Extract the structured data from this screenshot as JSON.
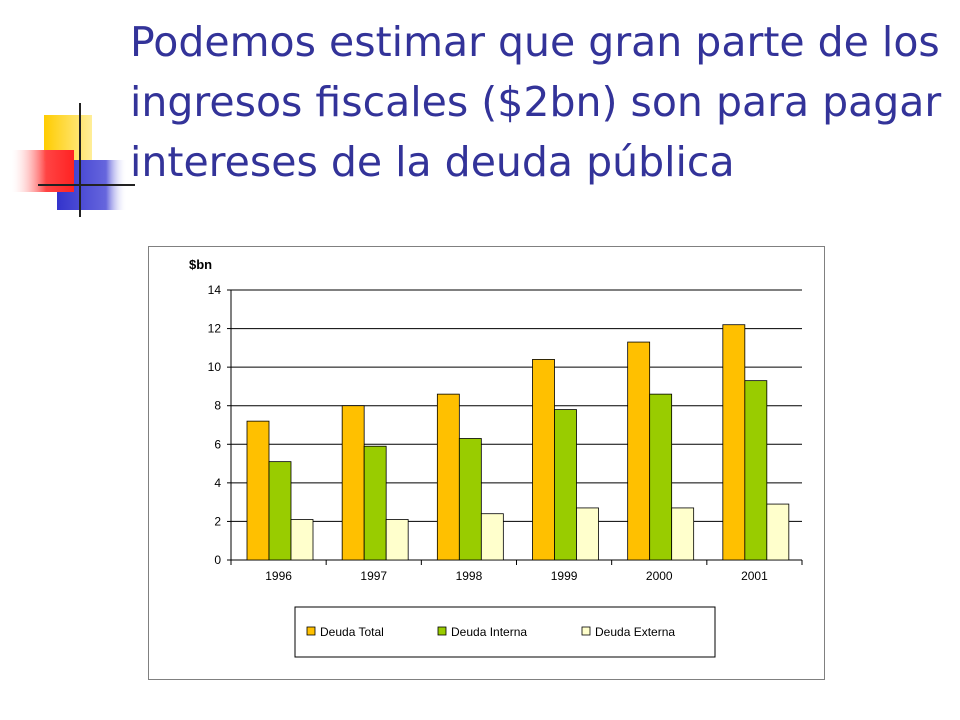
{
  "slide": {
    "title": "Podemos estimar que gran parte de los ingresos fiscales ($2bn) son para pagar intereses de la deuda pública"
  },
  "colors": {
    "title": "#333399",
    "deco_yellow": "#FFCC00",
    "deco_red": "#FF3333",
    "deco_blue": "#3333CC"
  },
  "chart_data": {
    "type": "bar",
    "title": "",
    "ylabel": "$bn",
    "xlabel": "",
    "ylim": [
      0,
      14
    ],
    "yticks": [
      0,
      2,
      4,
      6,
      8,
      10,
      12,
      14
    ],
    "grid": true,
    "legend_position": "bottom",
    "categories": [
      "1996",
      "1997",
      "1998",
      "1999",
      "2000",
      "2001"
    ],
    "series": [
      {
        "name": "Deuda Total",
        "color": "#FFC000",
        "values": [
          7.2,
          8.0,
          8.6,
          10.4,
          11.3,
          12.2
        ]
      },
      {
        "name": "Deuda Interna",
        "color": "#99CC00",
        "values": [
          5.1,
          5.9,
          6.3,
          7.8,
          8.6,
          9.3
        ]
      },
      {
        "name": "Deuda Externa",
        "color": "#FFFFCC",
        "values": [
          2.1,
          2.1,
          2.4,
          2.7,
          2.7,
          2.9
        ]
      }
    ]
  }
}
